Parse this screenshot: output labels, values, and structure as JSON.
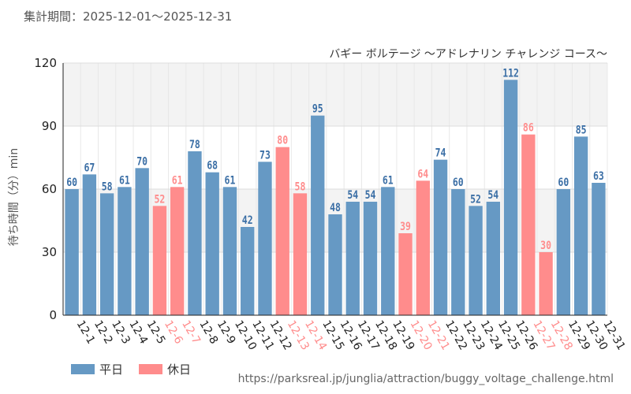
{
  "header": {
    "period": "集計期間：2025-12-01～2025-12-31",
    "subtitle": "バギー ボルテージ ～アドレナリン チャレンジ コース～"
  },
  "legend": {
    "weekday_label": "平日",
    "holiday_label": "休日",
    "weekday_color": "#6699c4",
    "holiday_color": "#ff8c8c"
  },
  "source": "https://parksreal.jp/junglia/attraction/buggy_voltage_challenge.html",
  "chart_data": {
    "type": "bar",
    "title": "バギー ボルテージ ～アドレナリン チャレンジ コース～",
    "xlabel": "",
    "ylabel": "待ち時間（分）min",
    "ylim": [
      0,
      120
    ],
    "yticks": [
      0,
      30,
      60,
      90,
      120
    ],
    "categories": [
      "12-1",
      "12-2",
      "12-3",
      "12-4",
      "12-5",
      "12-6",
      "12-7",
      "12-8",
      "12-9",
      "12-10",
      "12-11",
      "12-12",
      "12-13",
      "12-14",
      "12-15",
      "12-16",
      "12-17",
      "12-18",
      "12-19",
      "12-20",
      "12-21",
      "12-22",
      "12-23",
      "12-24",
      "12-25",
      "12-26",
      "12-27",
      "12-28",
      "12-29",
      "12-30",
      "12-31"
    ],
    "values": [
      60,
      67,
      58,
      61,
      70,
      52,
      61,
      78,
      68,
      61,
      42,
      73,
      80,
      58,
      95,
      48,
      54,
      54,
      61,
      39,
      64,
      74,
      60,
      52,
      54,
      112,
      86,
      30,
      60,
      85,
      63
    ],
    "day_type": [
      "weekday",
      "weekday",
      "weekday",
      "weekday",
      "weekday",
      "holiday",
      "holiday",
      "weekday",
      "weekday",
      "weekday",
      "weekday",
      "weekday",
      "holiday",
      "holiday",
      "weekday",
      "weekday",
      "weekday",
      "weekday",
      "weekday",
      "holiday",
      "holiday",
      "weekday",
      "weekday",
      "weekday",
      "weekday",
      "weekday",
      "holiday",
      "holiday",
      "weekday",
      "weekday",
      "weekday"
    ]
  }
}
